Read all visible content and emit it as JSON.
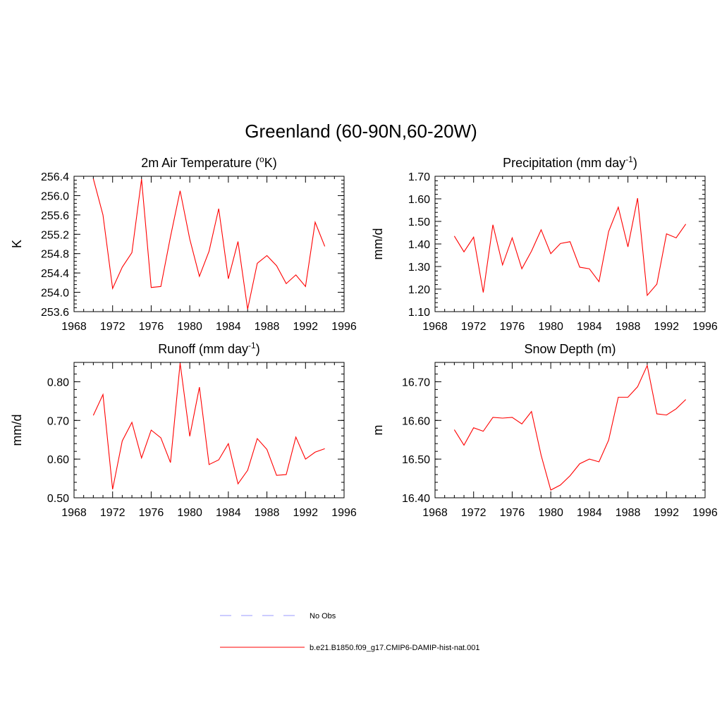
{
  "figure": {
    "title": "Greenland (60-90N,60-20W)"
  },
  "legend": {
    "placement": "bottom-center",
    "items": [
      {
        "label": "No Obs",
        "color": "#9999ff",
        "dash": true
      },
      {
        "label": "b.e21.B1850.f09_g17.CMIP6-DAMIP-hist-nat.001",
        "color": "#ff0000",
        "dash": false
      }
    ]
  },
  "series_color": "#ff0000",
  "chart_data": [
    {
      "type": "line",
      "title": {
        "base": "2m Air Temperature (",
        "sup": "o",
        "tail": "K)"
      },
      "ylabel": "K",
      "xlim": [
        1968,
        1996
      ],
      "xticks": [
        1968,
        1972,
        1976,
        1980,
        1984,
        1988,
        1992,
        1996
      ],
      "ylim": [
        253.6,
        256.4
      ],
      "yticks": [
        "253.6",
        "254.0",
        "254.4",
        "254.8",
        "255.2",
        "255.6",
        "256.0",
        "256.4"
      ],
      "x": [
        1970,
        1971,
        1972,
        1973,
        1974,
        1975,
        1976,
        1977,
        1978,
        1979,
        1980,
        1981,
        1982,
        1983,
        1984,
        1985,
        1986,
        1987,
        1988,
        1989,
        1990,
        1991,
        1992,
        1993,
        1994
      ],
      "series": [
        {
          "name": "b.e21.B1850.f09_g17.CMIP6-DAMIP-hist-nat.001",
          "values": [
            256.35,
            255.6,
            254.08,
            254.52,
            254.82,
            256.34,
            254.1,
            254.12,
            255.15,
            256.1,
            255.1,
            254.33,
            254.85,
            255.73,
            254.28,
            255.05,
            253.65,
            254.6,
            254.76,
            254.55,
            254.18,
            254.36,
            254.12,
            255.45,
            254.95
          ]
        }
      ]
    },
    {
      "type": "line",
      "title": {
        "base": "Precipitation (mm day",
        "sup": "-1",
        "tail": ")"
      },
      "ylabel": "mm/d",
      "xlim": [
        1968,
        1996
      ],
      "xticks": [
        1968,
        1972,
        1976,
        1980,
        1984,
        1988,
        1992,
        1996
      ],
      "ylim": [
        1.1,
        1.7
      ],
      "yticks": [
        "1.10",
        "1.20",
        "1.30",
        "1.40",
        "1.50",
        "1.60",
        "1.70"
      ],
      "x": [
        1970,
        1971,
        1972,
        1973,
        1974,
        1975,
        1976,
        1977,
        1978,
        1979,
        1980,
        1981,
        1982,
        1983,
        1984,
        1985,
        1986,
        1987,
        1988,
        1989,
        1990,
        1991,
        1992,
        1993,
        1994
      ],
      "series": [
        {
          "name": "b.e21.B1850.f09_g17.CMIP6-DAMIP-hist-nat.001",
          "values": [
            1.435,
            1.365,
            1.43,
            1.185,
            1.485,
            1.307,
            1.427,
            1.29,
            1.368,
            1.463,
            1.357,
            1.402,
            1.41,
            1.297,
            1.29,
            1.233,
            1.455,
            1.563,
            1.387,
            1.603,
            1.172,
            1.222,
            1.445,
            1.427,
            1.488
          ]
        }
      ]
    },
    {
      "type": "line",
      "title": {
        "base": "Runoff (mm day",
        "sup": "-1",
        "tail": ")"
      },
      "ylabel": "mm/d",
      "xlim": [
        1968,
        1996
      ],
      "xticks": [
        1968,
        1972,
        1976,
        1980,
        1984,
        1988,
        1992,
        1996
      ],
      "ylim": [
        0.5,
        0.85
      ],
      "yticks": [
        "0.50",
        "0.60",
        "0.70",
        "0.80"
      ],
      "ytick_values": [
        0.5,
        0.6,
        0.7,
        0.8
      ],
      "x": [
        1970,
        1971,
        1972,
        1973,
        1974,
        1975,
        1976,
        1977,
        1978,
        1979,
        1980,
        1981,
        1982,
        1983,
        1984,
        1985,
        1986,
        1987,
        1988,
        1989,
        1990,
        1991,
        1992,
        1993,
        1994
      ],
      "series": [
        {
          "name": "b.e21.B1850.f09_g17.CMIP6-DAMIP-hist-nat.001",
          "values": [
            0.713,
            0.767,
            0.522,
            0.647,
            0.695,
            0.603,
            0.675,
            0.655,
            0.591,
            0.848,
            0.659,
            0.786,
            0.586,
            0.598,
            0.64,
            0.536,
            0.571,
            0.653,
            0.625,
            0.558,
            0.56,
            0.657,
            0.6,
            0.618,
            0.627
          ]
        }
      ]
    },
    {
      "type": "line",
      "title": {
        "base": "Snow Depth (m)",
        "sup": "",
        "tail": ""
      },
      "ylabel": "m",
      "xlim": [
        1968,
        1996
      ],
      "xticks": [
        1968,
        1972,
        1976,
        1980,
        1984,
        1988,
        1992,
        1996
      ],
      "ylim": [
        16.4,
        16.75
      ],
      "yticks": [
        "16.40",
        "16.50",
        "16.60",
        "16.70"
      ],
      "ytick_values": [
        16.4,
        16.5,
        16.6,
        16.7
      ],
      "x": [
        1970,
        1971,
        1972,
        1973,
        1974,
        1975,
        1976,
        1977,
        1978,
        1979,
        1980,
        1981,
        1982,
        1983,
        1984,
        1985,
        1986,
        1987,
        1988,
        1989,
        1990,
        1991,
        1992,
        1993,
        1994
      ],
      "series": [
        {
          "name": "b.e21.B1850.f09_g17.CMIP6-DAMIP-hist-nat.001",
          "values": [
            16.576,
            16.536,
            16.581,
            16.572,
            16.608,
            16.606,
            16.608,
            16.591,
            16.623,
            16.51,
            16.42,
            16.433,
            16.457,
            16.488,
            16.5,
            16.493,
            16.549,
            16.66,
            16.66,
            16.687,
            16.742,
            16.617,
            16.614,
            16.63,
            16.654
          ]
        }
      ]
    }
  ]
}
